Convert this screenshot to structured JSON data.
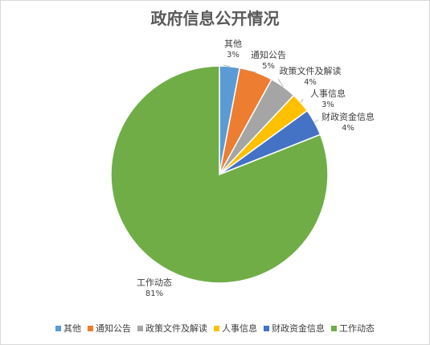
{
  "chart_data": {
    "type": "pie",
    "title": "政府信息公开情况",
    "slices": [
      {
        "name": "其他",
        "label": "3%",
        "value": 3,
        "color": "#5B9BD5"
      },
      {
        "name": "通知公告",
        "label": "5%",
        "value": 5,
        "color": "#ED7D31"
      },
      {
        "name": "政策文件及解读",
        "label": "4%",
        "value": 4,
        "color": "#A5A5A5"
      },
      {
        "name": "人事信息",
        "label": "3%",
        "value": 3,
        "color": "#FFC000"
      },
      {
        "name": "财政资金信息",
        "label": "4%",
        "value": 4,
        "color": "#4472C4"
      },
      {
        "name": "工作动态",
        "label": "81%",
        "value": 81,
        "color": "#70AD47"
      }
    ],
    "legend_position": "bottom"
  }
}
